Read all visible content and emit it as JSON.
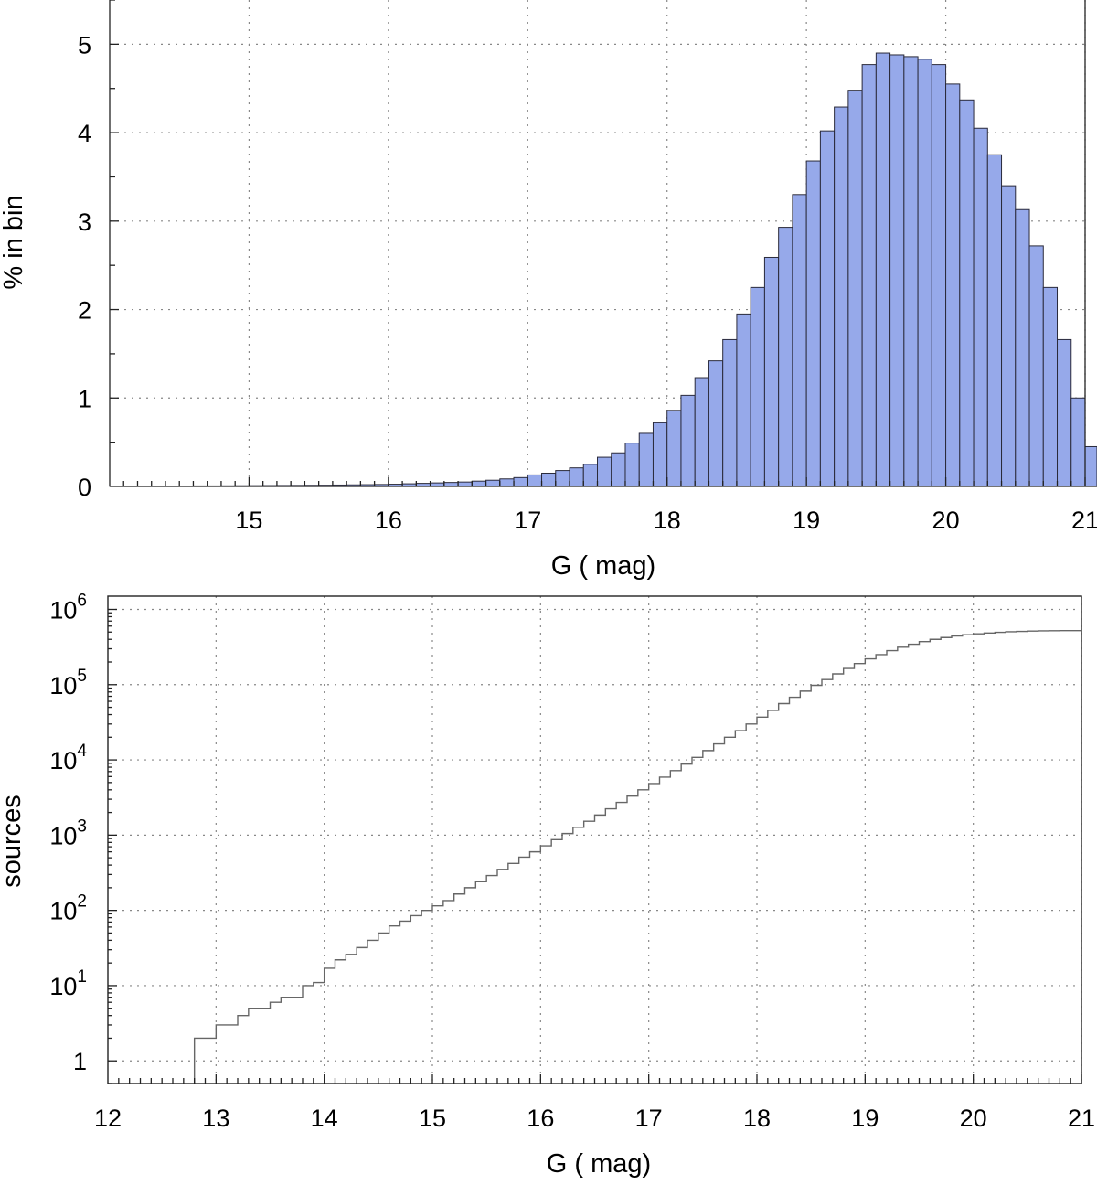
{
  "chart_data": [
    {
      "type": "bar",
      "subtype": "histogram",
      "xlabel": "G ( mag)",
      "ylabel": "% in bin",
      "xlim": [
        14.0,
        21.0
      ],
      "ylim": [
        0,
        5.5
      ],
      "bin_width": 0.1,
      "xticks": [
        "15",
        "16",
        "17",
        "18",
        "19",
        "20",
        "21"
      ],
      "yticks": [
        "0",
        "1",
        "2",
        "3",
        "4",
        "5"
      ],
      "grid": true,
      "colors": {
        "bar_fill": "#96a9ea",
        "bar_edge": "#2a2a3a"
      },
      "bin_starts": [
        14.0,
        14.1,
        14.2,
        14.3,
        14.4,
        14.5,
        14.6,
        14.7,
        14.8,
        14.9,
        15.0,
        15.1,
        15.2,
        15.3,
        15.4,
        15.5,
        15.6,
        15.7,
        15.8,
        15.9,
        16.0,
        16.1,
        16.2,
        16.3,
        16.4,
        16.5,
        16.6,
        16.7,
        16.8,
        16.9,
        17.0,
        17.1,
        17.2,
        17.3,
        17.4,
        17.5,
        17.6,
        17.7,
        17.8,
        17.9,
        18.0,
        18.1,
        18.2,
        18.3,
        18.4,
        18.5,
        18.6,
        18.7,
        18.8,
        18.9,
        19.0,
        19.1,
        19.2,
        19.3,
        19.4,
        19.5,
        19.6,
        19.7,
        19.8,
        19.9,
        20.0,
        20.1,
        20.2,
        20.3,
        20.4,
        20.5,
        20.6,
        20.7,
        20.8,
        20.9
      ],
      "values": [
        0.003,
        0.003,
        0.004,
        0.004,
        0.005,
        0.005,
        0.006,
        0.006,
        0.007,
        0.008,
        0.009,
        0.01,
        0.011,
        0.012,
        0.013,
        0.014,
        0.016,
        0.018,
        0.02,
        0.022,
        0.025,
        0.03,
        0.035,
        0.04,
        0.045,
        0.05,
        0.06,
        0.07,
        0.085,
        0.1,
        0.13,
        0.15,
        0.18,
        0.21,
        0.25,
        0.33,
        0.38,
        0.49,
        0.6,
        0.72,
        0.86,
        1.03,
        1.23,
        1.42,
        1.66,
        1.95,
        2.25,
        2.59,
        2.93,
        3.3,
        3.68,
        4.02,
        4.29,
        4.48,
        4.77,
        4.9,
        4.88,
        4.86,
        4.83,
        4.77,
        4.55,
        4.37,
        4.05,
        3.75,
        3.4,
        3.13,
        2.72,
        2.25,
        1.66,
        1.0
      ],
      "partial_last_bin": {
        "start": 21.0,
        "value": 0.45
      }
    },
    {
      "type": "line",
      "subtype": "cumulative step",
      "xlabel": "G ( mag)",
      "ylabel": "sources",
      "yscale": "log",
      "xlim": [
        12.0,
        21.0
      ],
      "ylim": [
        0.5,
        1500000
      ],
      "xticks": [
        "12",
        "13",
        "14",
        "15",
        "16",
        "17",
        "18",
        "19",
        "20",
        "21"
      ],
      "yticks": [
        {
          "value": 1,
          "base": "1",
          "exp": ""
        },
        {
          "value": 10,
          "base": "10",
          "exp": "1"
        },
        {
          "value": 100,
          "base": "10",
          "exp": "2"
        },
        {
          "value": 1000,
          "base": "10",
          "exp": "3"
        },
        {
          "value": 10000,
          "base": "10",
          "exp": "4"
        },
        {
          "value": 100000,
          "base": "10",
          "exp": "5"
        },
        {
          "value": 1000000,
          "base": "10",
          "exp": "6"
        }
      ],
      "grid": true,
      "colors": {
        "line": "#666666"
      },
      "step_x": [
        12.8,
        12.9,
        13.0,
        13.1,
        13.2,
        13.3,
        13.4,
        13.5,
        13.6,
        13.7,
        13.8,
        13.9,
        14.0,
        14.1,
        14.2,
        14.3,
        14.4,
        14.5,
        14.6,
        14.7,
        14.8,
        14.9,
        15.0,
        15.1,
        15.2,
        15.3,
        15.4,
        15.5,
        15.6,
        15.7,
        15.8,
        15.9,
        16.0,
        16.1,
        16.2,
        16.3,
        16.4,
        16.5,
        16.6,
        16.7,
        16.8,
        16.9,
        17.0,
        17.1,
        17.2,
        17.3,
        17.4,
        17.5,
        17.6,
        17.7,
        17.8,
        17.9,
        18.0,
        18.1,
        18.2,
        18.3,
        18.4,
        18.5,
        18.6,
        18.7,
        18.8,
        18.9,
        19.0,
        19.1,
        19.2,
        19.3,
        19.4,
        19.5,
        19.6,
        19.7,
        19.8,
        19.9,
        20.0,
        20.1,
        20.2,
        20.3,
        20.4,
        20.5,
        20.6,
        20.7,
        20.8,
        21.0
      ],
      "step_y": [
        2,
        2,
        3,
        3,
        4,
        5,
        5,
        6,
        7,
        7,
        10,
        11,
        17,
        22,
        26,
        32,
        40,
        50,
        62,
        72,
        85,
        100,
        115,
        135,
        165,
        200,
        240,
        290,
        350,
        420,
        510,
        600,
        720,
        870,
        1050,
        1270,
        1530,
        1850,
        2240,
        2720,
        3300,
        4000,
        4850,
        5900,
        7200,
        8800,
        10800,
        13300,
        16300,
        20000,
        24500,
        30000,
        37000,
        45500,
        56000,
        68000,
        82000,
        98000,
        117000,
        139000,
        164000,
        191000,
        220000,
        251000,
        283000,
        315000,
        345000,
        374000,
        400000,
        423000,
        443000,
        460000,
        474000,
        486000,
        496000,
        504000,
        510000,
        515000,
        519000,
        521000,
        522000,
        522000
      ]
    }
  ]
}
